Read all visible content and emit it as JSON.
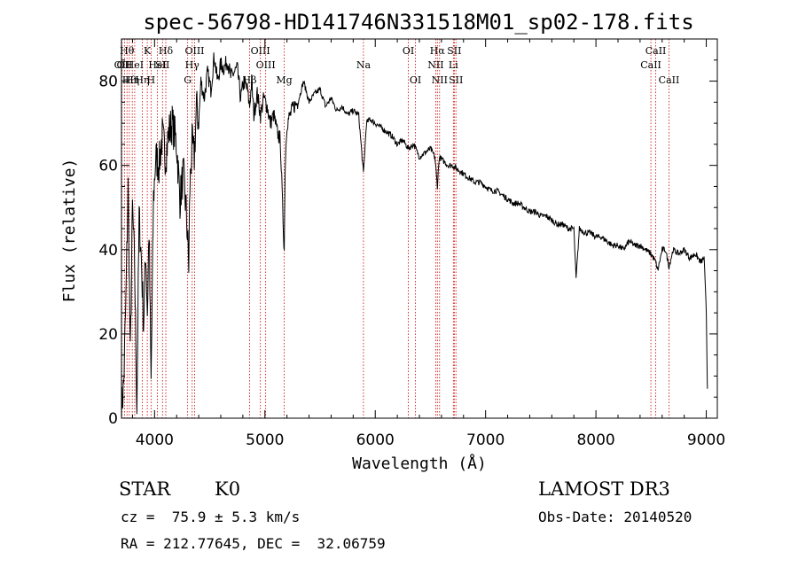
{
  "chart_data": {
    "type": "line",
    "title": "spec-56798-HD141746N331518M01_sp02-178.fits",
    "xlabel": "Wavelength (Å)",
    "ylabel": "Flux (relative)",
    "xlim": [
      3700,
      9100
    ],
    "ylim": [
      0,
      90
    ],
    "xticks": [
      4000,
      5000,
      6000,
      7000,
      8000,
      9000
    ],
    "yticks": [
      0,
      20,
      40,
      60,
      80
    ],
    "series": [
      {
        "name": "spectrum",
        "x": [
          3700,
          3720,
          3740,
          3760,
          3780,
          3800,
          3820,
          3840,
          3860,
          3880,
          3900,
          3920,
          3935,
          3950,
          3968,
          3990,
          4010,
          4040,
          4070,
          4100,
          4130,
          4160,
          4200,
          4230,
          4260,
          4290,
          4310,
          4320,
          4340,
          4360,
          4380,
          4400,
          4420,
          4450,
          4480,
          4510,
          4540,
          4570,
          4600,
          4630,
          4660,
          4690,
          4720,
          4750,
          4780,
          4810,
          4840,
          4861,
          4880,
          4900,
          4930,
          4960,
          4990,
          5020,
          5050,
          5080,
          5110,
          5140,
          5160,
          5175,
          5183,
          5200,
          5230,
          5260,
          5300,
          5350,
          5400,
          5450,
          5500,
          5550,
          5600,
          5650,
          5700,
          5750,
          5800,
          5850,
          5893,
          5920,
          5950,
          6000,
          6050,
          6100,
          6150,
          6200,
          6250,
          6300,
          6350,
          6400,
          6450,
          6500,
          6540,
          6563,
          6580,
          6620,
          6660,
          6700,
          6750,
          6800,
          6850,
          6900,
          6950,
          7000,
          7050,
          7100,
          7150,
          7200,
          7250,
          7300,
          7350,
          7400,
          7450,
          7500,
          7550,
          7600,
          7650,
          7700,
          7750,
          7800,
          7820,
          7850,
          7900,
          7950,
          8000,
          8050,
          8100,
          8150,
          8200,
          8250,
          8300,
          8350,
          8400,
          8450,
          8500,
          8542,
          8560,
          8600,
          8630,
          8662,
          8700,
          8750,
          8800,
          8850,
          8900,
          8950,
          8980,
          9000,
          9010
        ],
        "y": [
          2,
          8,
          28,
          55,
          14,
          50,
          35,
          3,
          48,
          38,
          22,
          40,
          25,
          45,
          8,
          52,
          62,
          60,
          67,
          62,
          68,
          70,
          65,
          52,
          58,
          48,
          36,
          55,
          65,
          62,
          74,
          70,
          80,
          76,
          82,
          78,
          86,
          80,
          84,
          83,
          85,
          81,
          82,
          83,
          76,
          80,
          78,
          74,
          80,
          72,
          77,
          72,
          76,
          74,
          70,
          72,
          68,
          66,
          50,
          40,
          60,
          70,
          72,
          74,
          75,
          80,
          75,
          77,
          78,
          74,
          76,
          73,
          74,
          72,
          73,
          72,
          58,
          70,
          71,
          70,
          69,
          68,
          67,
          65,
          66,
          64,
          65,
          62,
          63,
          64,
          62,
          55,
          62,
          61,
          60,
          60,
          59,
          58,
          57,
          56,
          56,
          55,
          54,
          54,
          53,
          52,
          51,
          51,
          50,
          49,
          49,
          48,
          48,
          47,
          46,
          46,
          45,
          45,
          33,
          45,
          44,
          44,
          43,
          43,
          42,
          41,
          41,
          40,
          42,
          41,
          41,
          40,
          39,
          37,
          35,
          40,
          40,
          36,
          40,
          39,
          40,
          38,
          39,
          37,
          38,
          25,
          7
        ]
      }
    ],
    "lines": [
      {
        "wl": 3704,
        "label": "OII",
        "row": 2
      },
      {
        "wl": 3727,
        "label": "OII",
        "row": 2
      },
      {
        "wl": 3750,
        "label": "Hθ",
        "row": 1
      },
      {
        "wl": 3771,
        "label": "Hθ",
        "row": 3
      },
      {
        "wl": 3798,
        "label": "Hη",
        "row": 3
      },
      {
        "wl": 3820,
        "label": "HeI",
        "row": 2
      },
      {
        "wl": 3889,
        "label": "Hη",
        "row": 3
      },
      {
        "wl": 3934,
        "label": "K",
        "row": 1
      },
      {
        "wl": 3968,
        "label": "H",
        "row": 3
      },
      {
        "wl": 4026,
        "label": "HeI",
        "row": 2
      },
      {
        "wl": 4072,
        "label": "SII",
        "row": 2
      },
      {
        "wl": 4102,
        "label": "Hδ",
        "row": 1
      },
      {
        "wl": 4300,
        "label": "G",
        "row": 3
      },
      {
        "wl": 4341,
        "label": "Hγ",
        "row": 2
      },
      {
        "wl": 4363,
        "label": "OIII",
        "row": 1
      },
      {
        "wl": 4861,
        "label": "Hβ",
        "row": 3
      },
      {
        "wl": 4959,
        "label": "OIII",
        "row": 1
      },
      {
        "wl": 5007,
        "label": "OIII",
        "row": 2
      },
      {
        "wl": 5175,
        "label": "Mg",
        "row": 3
      },
      {
        "wl": 5893,
        "label": "Na",
        "row": 2
      },
      {
        "wl": 6300,
        "label": "OI",
        "row": 1
      },
      {
        "wl": 6364,
        "label": "OI",
        "row": 3
      },
      {
        "wl": 6548,
        "label": "NII",
        "row": 2
      },
      {
        "wl": 6563,
        "label": "Hα",
        "row": 1
      },
      {
        "wl": 6583,
        "label": "NII",
        "row": 3
      },
      {
        "wl": 6708,
        "label": "Li",
        "row": 2
      },
      {
        "wl": 6716,
        "label": "SII",
        "row": 1
      },
      {
        "wl": 6731,
        "label": "SII",
        "row": 3
      },
      {
        "wl": 8498,
        "label": "CaII",
        "row": 2
      },
      {
        "wl": 8542,
        "label": "CaII",
        "row": 1
      },
      {
        "wl": 8662,
        "label": "CaII",
        "row": 3
      }
    ]
  },
  "info": {
    "class_label": "STAR",
    "subclass": "K0",
    "survey": "LAMOST DR3",
    "redshift": "cz =  75.9 ± 5.3 km/s",
    "obs_date": "Obs-Date: 20140520",
    "coords": "RA = 212.77645, DEC =  32.06759"
  },
  "colors": {
    "spectrum": "#000000",
    "line_markers": "#cc0000",
    "axes": "#000000"
  }
}
